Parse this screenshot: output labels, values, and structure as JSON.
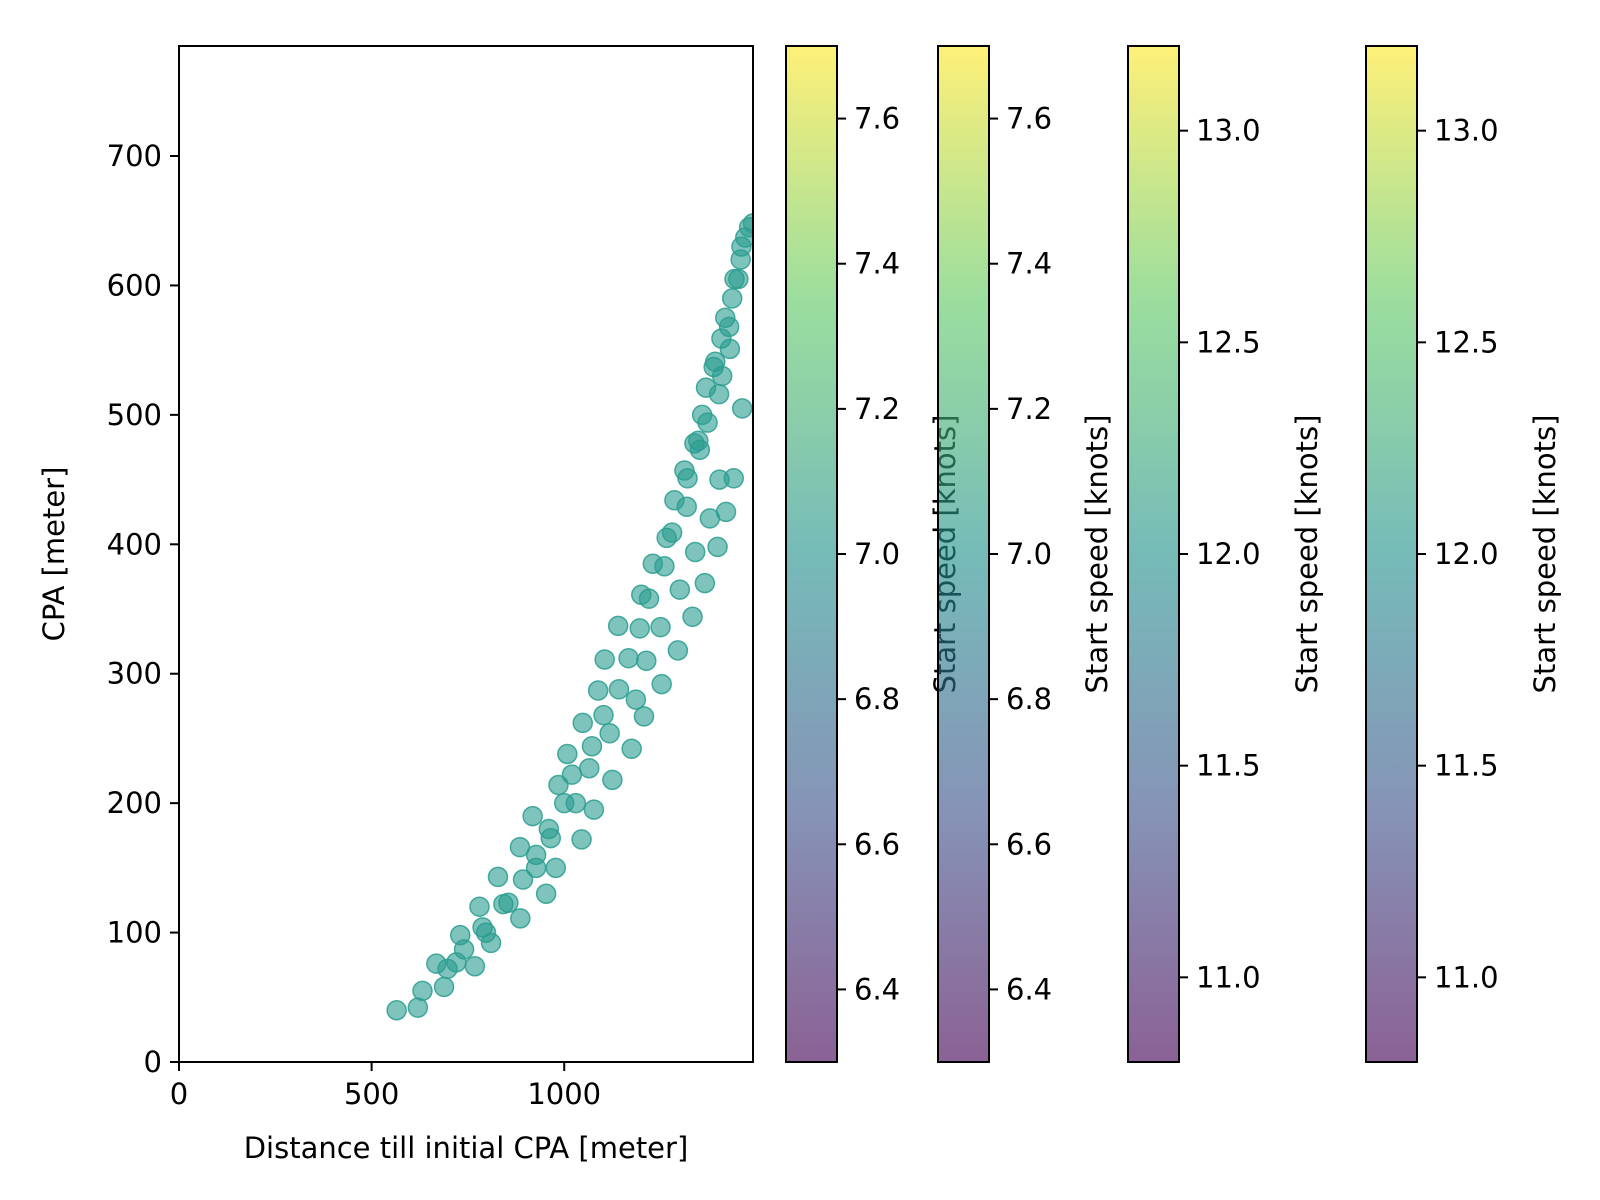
{
  "chart_data": {
    "type": "scatter",
    "xlabel": "Distance till initial CPA [meter]",
    "ylabel": "CPA [meter]",
    "xlim": [
      0,
      1490
    ],
    "ylim": [
      0,
      785
    ],
    "x_ticks": [
      0,
      500,
      1000
    ],
    "y_ticks": [
      0,
      100,
      200,
      300,
      400,
      500,
      600,
      700
    ],
    "grid": false,
    "marker_color": "#2a9d8f",
    "marker_alpha": 0.6,
    "series": [
      {
        "x": [
          565,
          620,
          632,
          668,
          688,
          697,
          720,
          730,
          740,
          768,
          780,
          788,
          797,
          810,
          828,
          842,
          855,
          885,
          886,
          893,
          918,
          927,
          927,
          953,
          960,
          965,
          978,
          985,
          1000,
          1008,
          1020,
          1030,
          1045,
          1048,
          1065,
          1072,
          1077,
          1088,
          1102,
          1105,
          1118,
          1125,
          1140,
          1142,
          1167,
          1175,
          1186,
          1196,
          1200,
          1207,
          1213,
          1220,
          1230,
          1250,
          1253,
          1260,
          1266,
          1280,
          1286,
          1295,
          1300,
          1312,
          1318,
          1320,
          1333,
          1338,
          1340,
          1348,
          1352,
          1358,
          1365,
          1368,
          1372,
          1378,
          1388,
          1392,
          1398,
          1402,
          1403,
          1408,
          1410,
          1418,
          1420,
          1428,
          1430,
          1436,
          1440,
          1442,
          1452,
          1458,
          1460,
          1462,
          1470,
          1480,
          1490
        ],
        "y": [
          40,
          42,
          55,
          76,
          58,
          72,
          77,
          98,
          87,
          74,
          120,
          104,
          100,
          92,
          143,
          122,
          123,
          166,
          111,
          141,
          190,
          150,
          160,
          130,
          180,
          173,
          150,
          214,
          200,
          238,
          222,
          200,
          172,
          262,
          227,
          244,
          195,
          287,
          268,
          311,
          254,
          218,
          337,
          288,
          312,
          242,
          280,
          335,
          361,
          267,
          310,
          358,
          385,
          336,
          292,
          383,
          405,
          409,
          434,
          318,
          365,
          457,
          429,
          451,
          344,
          478,
          394,
          480,
          473,
          500,
          370,
          521,
          494,
          420,
          537,
          541,
          398,
          516,
          450,
          559,
          530,
          575,
          425,
          568,
          551,
          590,
          451,
          605,
          605,
          620,
          630,
          505,
          637,
          645,
          648
        ]
      }
    ],
    "colorbars": [
      {
        "label": "Start speed [knots]",
        "range": [
          6.3,
          7.7
        ],
        "ticks": [
          "6.4",
          "6.6",
          "6.8",
          "7.0",
          "7.2",
          "7.4",
          "7.6"
        ]
      },
      {
        "label": "Start speed [knots]",
        "range": [
          6.3,
          7.7
        ],
        "ticks": [
          "6.4",
          "6.6",
          "6.8",
          "7.0",
          "7.2",
          "7.4",
          "7.6"
        ]
      },
      {
        "label": "Start speed [knots]",
        "range": [
          10.8,
          13.2
        ],
        "ticks": [
          "11.0",
          "11.5",
          "12.0",
          "12.5",
          "13.0"
        ]
      },
      {
        "label": "Start speed [knots]",
        "range": [
          10.8,
          13.2
        ],
        "ticks": [
          "11.0",
          "11.5",
          "12.0",
          "12.5",
          "13.0"
        ]
      }
    ],
    "colormap": [
      "#440154",
      "#3b528b",
      "#21918c",
      "#5ec962",
      "#fde725"
    ]
  }
}
